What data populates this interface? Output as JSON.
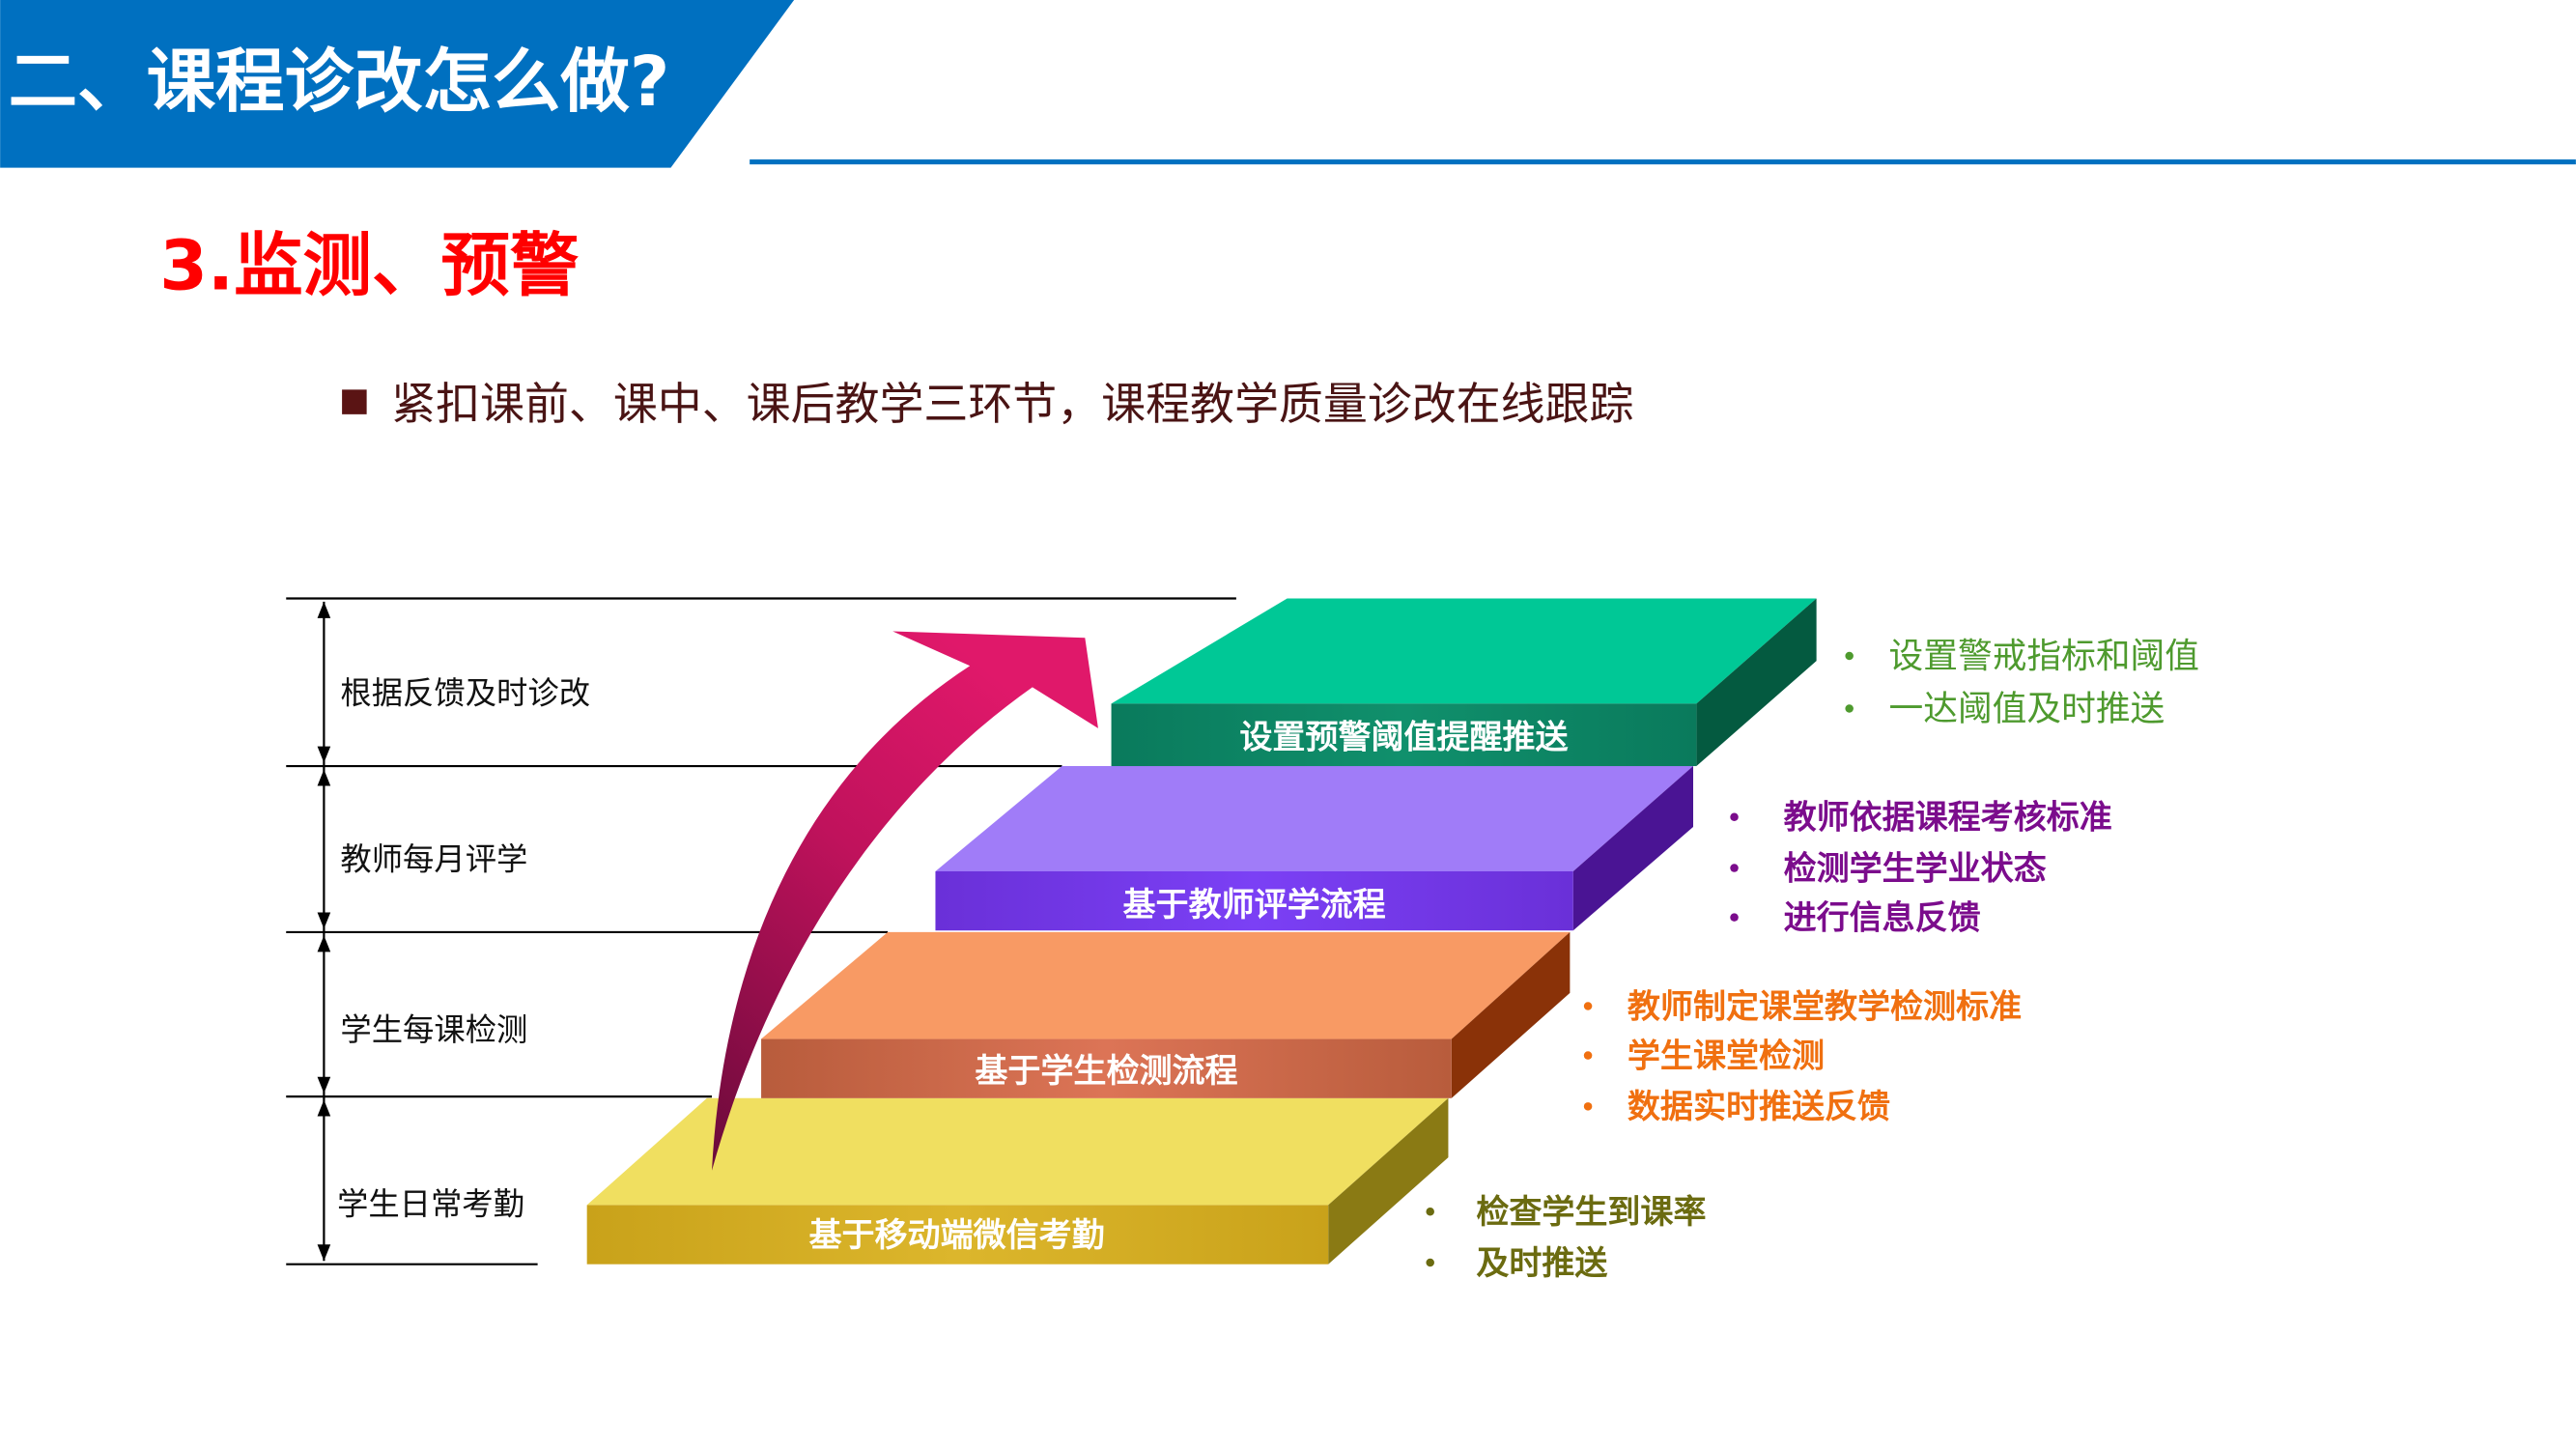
{
  "header": {
    "title": "二、课程诊改怎么做?",
    "accent_color": "#0070C0"
  },
  "section_title": "3.监测、预警",
  "intro_bullet": "紧扣课前、课中、课后教学三环节，课程教学质量诊改在线跟踪",
  "scale_labels": [
    "根据反馈及时诊改",
    "教师每月评学",
    "学生每课检测",
    "学生日常考勤"
  ],
  "steps": [
    {
      "label": "基于移动端微信考勤",
      "color": "#E8D44A",
      "points_color": "#6B6B10",
      "points": [
        "检查学生到课率",
        "及时推送"
      ]
    },
    {
      "label": "基于学生检测流程",
      "color": "#F59A62",
      "points_color": "#F07010",
      "points": [
        "教师制定课堂教学检测标准",
        "学生课堂检测",
        "数据实时推送反馈"
      ]
    },
    {
      "label": "基于教师评学流程",
      "color": "#9D7BF5",
      "points_color": "#7B0C8C",
      "points": [
        "教师依据课程考核标准",
        "检测学生学业状态",
        "进行信息反馈"
      ]
    },
    {
      "label": "设置预警阈值提醒推送",
      "color": "#00C896",
      "points_color": "#4E9A2E",
      "points": [
        "设置警戒指标和阈值",
        "一达阈值及时推送"
      ]
    }
  ]
}
